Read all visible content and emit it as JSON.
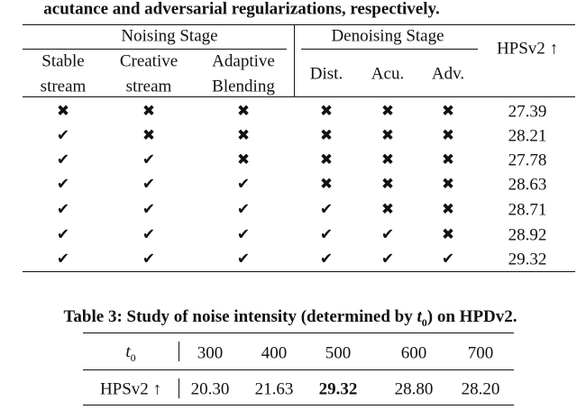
{
  "caption_top": "acutance and adversarial regularizations, respectively.",
  "table2": {
    "groups": [
      "Noising Stage",
      "Denoising Stage"
    ],
    "columns": [
      [
        "Stable",
        "stream"
      ],
      [
        "Creative",
        "stream"
      ],
      [
        "Adaptive",
        "Blending"
      ],
      [
        "Dist."
      ],
      [
        "Acu."
      ],
      [
        "Adv."
      ]
    ],
    "metric": "HPSv2 ↑",
    "rows": [
      [
        "✖",
        "✖",
        "✖",
        "✖",
        "✖",
        "✖",
        "27.39"
      ],
      [
        "✔",
        "✖",
        "✖",
        "✖",
        "✖",
        "✖",
        "28.21"
      ],
      [
        "✔",
        "✔",
        "✖",
        "✖",
        "✖",
        "✖",
        "27.78"
      ],
      [
        "✔",
        "✔",
        "✔",
        "✖",
        "✖",
        "✖",
        "28.63"
      ],
      [
        "✔",
        "✔",
        "✔",
        "✔",
        "✖",
        "✖",
        "28.71"
      ],
      [
        "✔",
        "✔",
        "✔",
        "✔",
        "✔",
        "✖",
        "28.92"
      ],
      [
        "✔",
        "✔",
        "✔",
        "✔",
        "✔",
        "✔",
        "29.32"
      ]
    ]
  },
  "table3": {
    "caption_before": "Table 3: Study of noise intensity (determined by ",
    "caption_symbol": "t",
    "caption_subscript": "0",
    "caption_after": ") on HPDv2.",
    "header": {
      "symbol": "t",
      "subscript": "0",
      "values": [
        "300",
        "400",
        "500",
        "600",
        "700"
      ]
    },
    "row": {
      "label": "HPSv2 ↑",
      "values": [
        "20.30",
        "21.63",
        "29.32",
        "28.80",
        "28.20"
      ],
      "bold_column": 2
    }
  }
}
